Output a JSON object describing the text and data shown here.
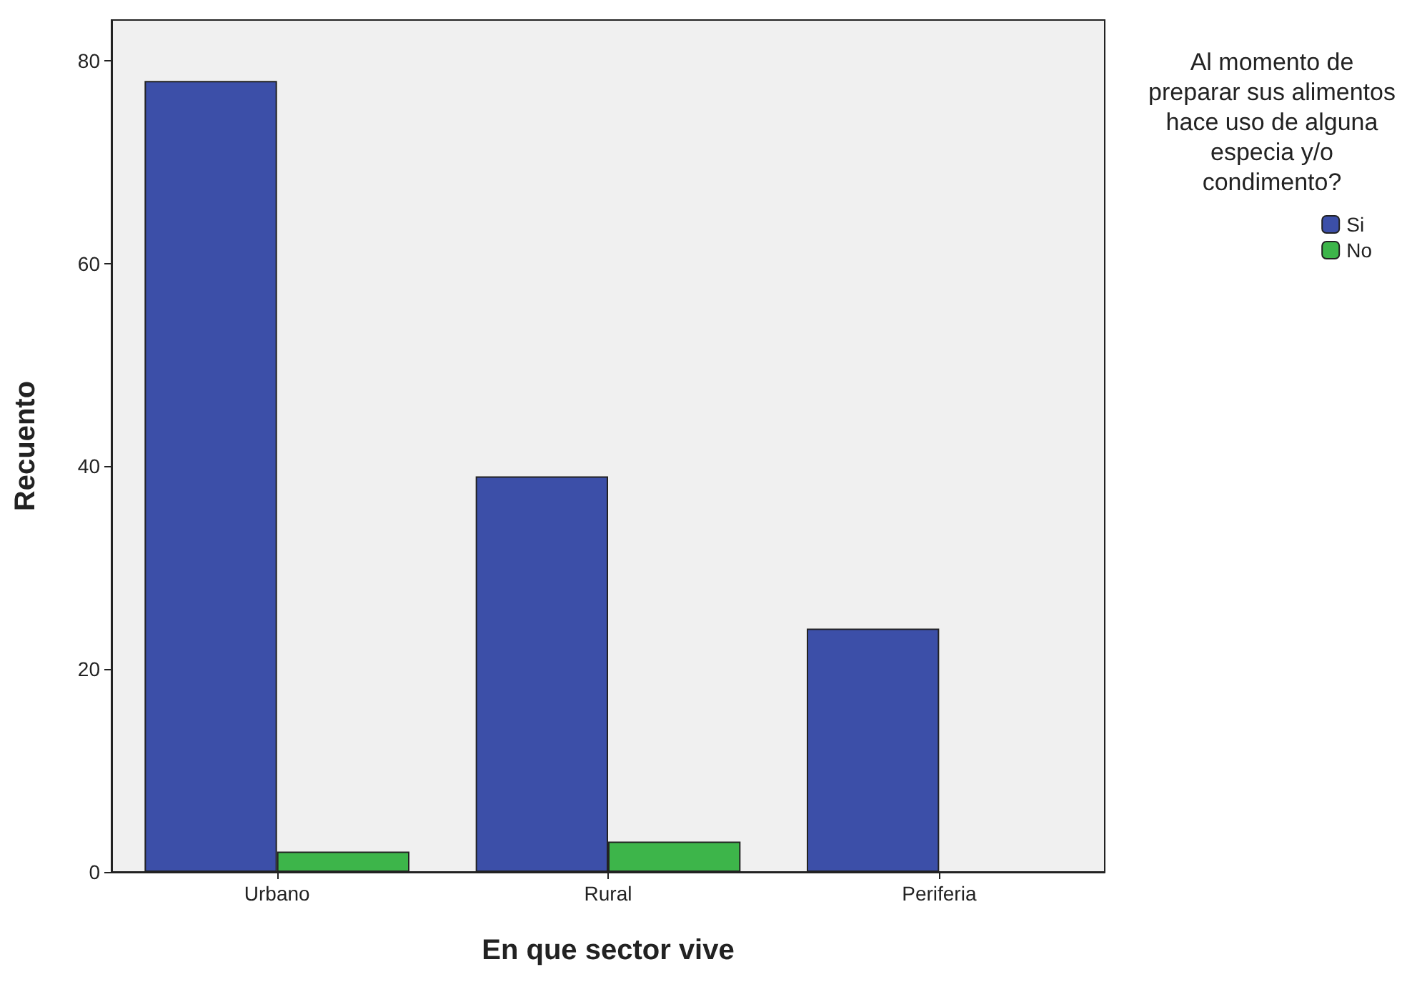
{
  "chart_data": {
    "type": "bar",
    "xlabel": "En que sector vive",
    "ylabel": "Recuento",
    "legend_title": "Al momento de\npreparar sus alimentos\nhace uso de alguna\nespecia y/o\ncondimento?",
    "categories": [
      "Urbano",
      "Rural",
      "Periferia"
    ],
    "series": [
      {
        "name": "Si",
        "color": "#3c4fa8",
        "values": [
          78,
          39,
          24
        ]
      },
      {
        "name": "No",
        "color": "#3db54a",
        "values": [
          2,
          3,
          null
        ]
      }
    ],
    "ylim": [
      0,
      84
    ],
    "yticks": [
      0,
      20,
      40,
      60,
      80
    ],
    "grid": false,
    "legend": "right"
  }
}
